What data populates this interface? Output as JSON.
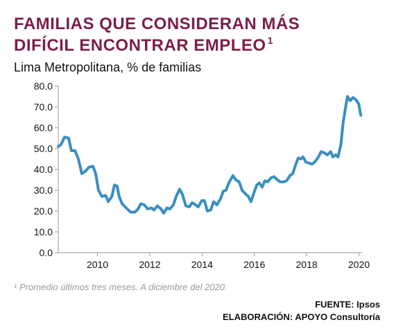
{
  "chart_data": {
    "type": "line",
    "title": [
      "FAMILIAS QUE CONSIDERAN MÁS",
      "DIFÍCIL ENCONTRAR EMPLEO"
    ],
    "title_note_marker": "1",
    "subtitle": "Lima Metropolitana, % de familias",
    "footnote": "¹ Promedio últimos tres meses. A diciembre del 2020.",
    "source": [
      "FUENTE: Ipsos",
      "ELABORACIÓN: APOYO Consultoría"
    ],
    "color": "#3a8fc0",
    "xlim": [
      2008.5,
      2020.12
    ],
    "xticks": [
      2010,
      2012,
      2014,
      2016,
      2018,
      2020
    ],
    "ylim": [
      0,
      80
    ],
    "yticks": [
      {
        "value": 0,
        "label": "0.0"
      },
      {
        "value": 10,
        "label": "10.0"
      },
      {
        "value": 20,
        "label": "20.0"
      },
      {
        "value": 30,
        "label": "30.0"
      },
      {
        "value": 40,
        "label": "40.0"
      },
      {
        "value": 50,
        "label": "50.0"
      },
      {
        "value": 60,
        "label": "60.0"
      },
      {
        "value": 70,
        "label": "70.0"
      },
      {
        "value": 80,
        "label": "80.0"
      }
    ],
    "x": [
      2008.5,
      2008.61,
      2008.74,
      2008.9,
      2009.0,
      2009.14,
      2009.27,
      2009.4,
      2009.53,
      2009.67,
      2009.83,
      2009.93,
      2010.04,
      2010.17,
      2010.31,
      2010.41,
      2010.55,
      2010.65,
      2010.75,
      2010.83,
      2010.94,
      2011.1,
      2011.26,
      2011.44,
      2011.55,
      2011.66,
      2011.79,
      2011.92,
      2012.06,
      2012.16,
      2012.29,
      2012.43,
      2012.53,
      2012.66,
      2012.77,
      2012.9,
      2013.01,
      2013.14,
      2013.25,
      2013.38,
      2013.51,
      2013.62,
      2013.75,
      2013.85,
      2013.99,
      2014.09,
      2014.2,
      2014.33,
      2014.44,
      2014.57,
      2014.71,
      2014.81,
      2014.92,
      2015.02,
      2015.18,
      2015.29,
      2015.42,
      2015.53,
      2015.64,
      2015.77,
      2015.87,
      2015.95,
      2016.09,
      2016.19,
      2016.3,
      2016.4,
      2016.51,
      2016.64,
      2016.75,
      2016.88,
      2016.99,
      2017.12,
      2017.23,
      2017.36,
      2017.47,
      2017.57,
      2017.68,
      2017.78,
      2017.86,
      2017.97,
      2018.1,
      2018.21,
      2018.34,
      2018.45,
      2018.55,
      2018.66,
      2018.79,
      2018.92,
      2019.0,
      2019.11,
      2019.2,
      2019.31,
      2019.39,
      2019.49,
      2019.56,
      2019.67,
      2019.77,
      2019.88,
      2019.99,
      2020.07
    ],
    "values": [
      51,
      52,
      55.5,
      55,
      49,
      49,
      45,
      38,
      39,
      41,
      41.5,
      38,
      30,
      27,
      27.5,
      24.5,
      27,
      32.5,
      32,
      27,
      23.5,
      21.5,
      19.5,
      19.5,
      21,
      23.5,
      23,
      21,
      21.5,
      20.5,
      22.5,
      21,
      19,
      21.5,
      21,
      23,
      27,
      30.5,
      28,
      22.5,
      22,
      24,
      23,
      22,
      25,
      25,
      20,
      20.5,
      24.5,
      23,
      26,
      29.5,
      30,
      33.5,
      37,
      35,
      34,
      30,
      28.5,
      27,
      24.5,
      27.5,
      32.5,
      33.5,
      31.5,
      34.5,
      34,
      36,
      36.5,
      35,
      34,
      34,
      34.5,
      37,
      38,
      42,
      45.5,
      45,
      46,
      43.5,
      43,
      42.5,
      44,
      46,
      48.5,
      48,
      47,
      48.5,
      46,
      47,
      46,
      52,
      62,
      70,
      75,
      73,
      74.5,
      73.5,
      71.5,
      66
    ]
  }
}
